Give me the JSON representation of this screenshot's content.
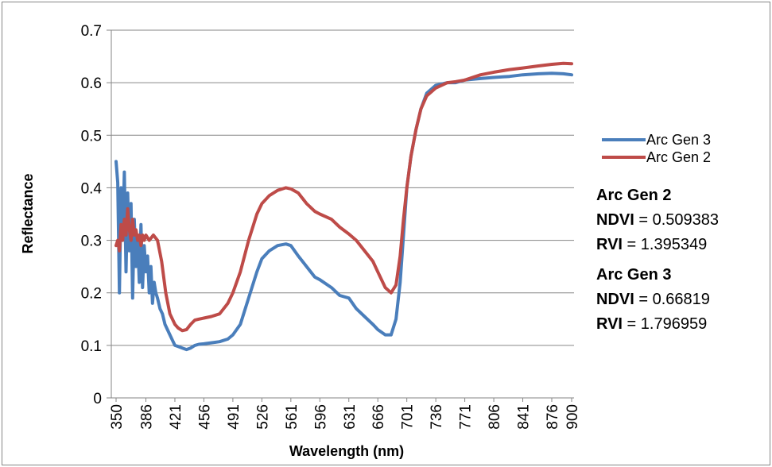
{
  "chart_data": {
    "type": "line",
    "xlabel": "Wavelength (nm)",
    "ylabel": "Reflectance",
    "x_ticks": [
      350,
      386,
      421,
      456,
      491,
      526,
      561,
      596,
      631,
      666,
      701,
      736,
      771,
      806,
      841,
      876,
      900
    ],
    "ylim": [
      0,
      0.7
    ],
    "y_ticks": [
      0,
      0.1,
      0.2,
      0.3,
      0.4,
      0.5,
      0.6,
      0.7
    ],
    "y_tick_labels": [
      "0",
      "0.1",
      "0.2",
      "0.3",
      "0.4",
      "0.5",
      "0.6",
      "0.7"
    ],
    "grid": "horizontal",
    "legend": "right",
    "series": [
      {
        "name": "Arc Gen 3",
        "color": "#4a7ebb",
        "x": [
          350,
          352,
          354,
          356,
          358,
          360,
          362,
          364,
          366,
          368,
          370,
          372,
          374,
          376,
          378,
          380,
          382,
          384,
          386,
          388,
          390,
          392,
          394,
          396,
          398,
          400,
          403,
          406,
          409,
          412,
          415,
          418,
          421,
          425,
          430,
          435,
          440,
          445,
          450,
          456,
          465,
          475,
          485,
          491,
          500,
          510,
          520,
          526,
          535,
          545,
          555,
          561,
          570,
          580,
          590,
          596,
          610,
          620,
          631,
          640,
          650,
          660,
          666,
          675,
          682,
          688,
          693,
          697,
          701,
          706,
          712,
          718,
          725,
          736,
          750,
          760,
          771,
          790,
          806,
          825,
          841,
          860,
          876,
          890,
          900
        ],
        "y": [
          0.45,
          0.41,
          0.2,
          0.4,
          0.3,
          0.43,
          0.24,
          0.39,
          0.28,
          0.37,
          0.19,
          0.34,
          0.25,
          0.3,
          0.22,
          0.33,
          0.21,
          0.29,
          0.24,
          0.27,
          0.2,
          0.25,
          0.18,
          0.22,
          0.2,
          0.19,
          0.17,
          0.16,
          0.14,
          0.13,
          0.12,
          0.11,
          0.1,
          0.098,
          0.095,
          0.092,
          0.095,
          0.1,
          0.102,
          0.103,
          0.105,
          0.107,
          0.112,
          0.12,
          0.14,
          0.19,
          0.24,
          0.265,
          0.28,
          0.29,
          0.293,
          0.29,
          0.27,
          0.25,
          0.23,
          0.225,
          0.21,
          0.195,
          0.19,
          0.17,
          0.155,
          0.14,
          0.13,
          0.12,
          0.12,
          0.15,
          0.22,
          0.31,
          0.4,
          0.46,
          0.51,
          0.55,
          0.58,
          0.595,
          0.6,
          0.6,
          0.605,
          0.608,
          0.61,
          0.612,
          0.615,
          0.617,
          0.618,
          0.617,
          0.615
        ]
      },
      {
        "name": "Arc Gen 2",
        "color": "#be4b48",
        "x": [
          350,
          352,
          354,
          356,
          358,
          360,
          362,
          364,
          366,
          368,
          370,
          372,
          374,
          376,
          378,
          380,
          382,
          384,
          386,
          390,
          395,
          400,
          405,
          410,
          415,
          421,
          425,
          430,
          435,
          440,
          445,
          450,
          456,
          465,
          475,
          485,
          491,
          500,
          510,
          520,
          526,
          535,
          545,
          555,
          561,
          570,
          580,
          590,
          596,
          610,
          620,
          631,
          640,
          650,
          660,
          666,
          675,
          682,
          688,
          693,
          697,
          701,
          706,
          712,
          718,
          725,
          736,
          750,
          760,
          771,
          790,
          806,
          825,
          841,
          860,
          876,
          890,
          900
        ],
        "y": [
          0.29,
          0.3,
          0.28,
          0.33,
          0.3,
          0.34,
          0.31,
          0.36,
          0.32,
          0.3,
          0.34,
          0.31,
          0.32,
          0.3,
          0.31,
          0.29,
          0.31,
          0.3,
          0.31,
          0.3,
          0.31,
          0.3,
          0.26,
          0.2,
          0.16,
          0.14,
          0.133,
          0.128,
          0.13,
          0.14,
          0.148,
          0.15,
          0.152,
          0.155,
          0.16,
          0.18,
          0.2,
          0.24,
          0.3,
          0.35,
          0.37,
          0.385,
          0.395,
          0.4,
          0.398,
          0.39,
          0.37,
          0.355,
          0.35,
          0.34,
          0.325,
          0.312,
          0.3,
          0.28,
          0.26,
          0.24,
          0.21,
          0.2,
          0.215,
          0.27,
          0.34,
          0.4,
          0.46,
          0.51,
          0.55,
          0.575,
          0.59,
          0.6,
          0.602,
          0.605,
          0.615,
          0.62,
          0.625,
          0.628,
          0.632,
          0.635,
          0.637,
          0.636
        ]
      }
    ],
    "annotations": [
      {
        "title": "Arc Gen 2",
        "lines": [
          {
            "label": "NDVI",
            "value": "= 0.509383"
          },
          {
            "label": "RVI",
            "value": "= 1.395349"
          }
        ]
      },
      {
        "title": "Arc Gen 3",
        "lines": [
          {
            "label": "NDVI",
            "value": "= 0.66819"
          },
          {
            "label": "RVI",
            "value": "= 1.796959"
          }
        ]
      }
    ]
  }
}
